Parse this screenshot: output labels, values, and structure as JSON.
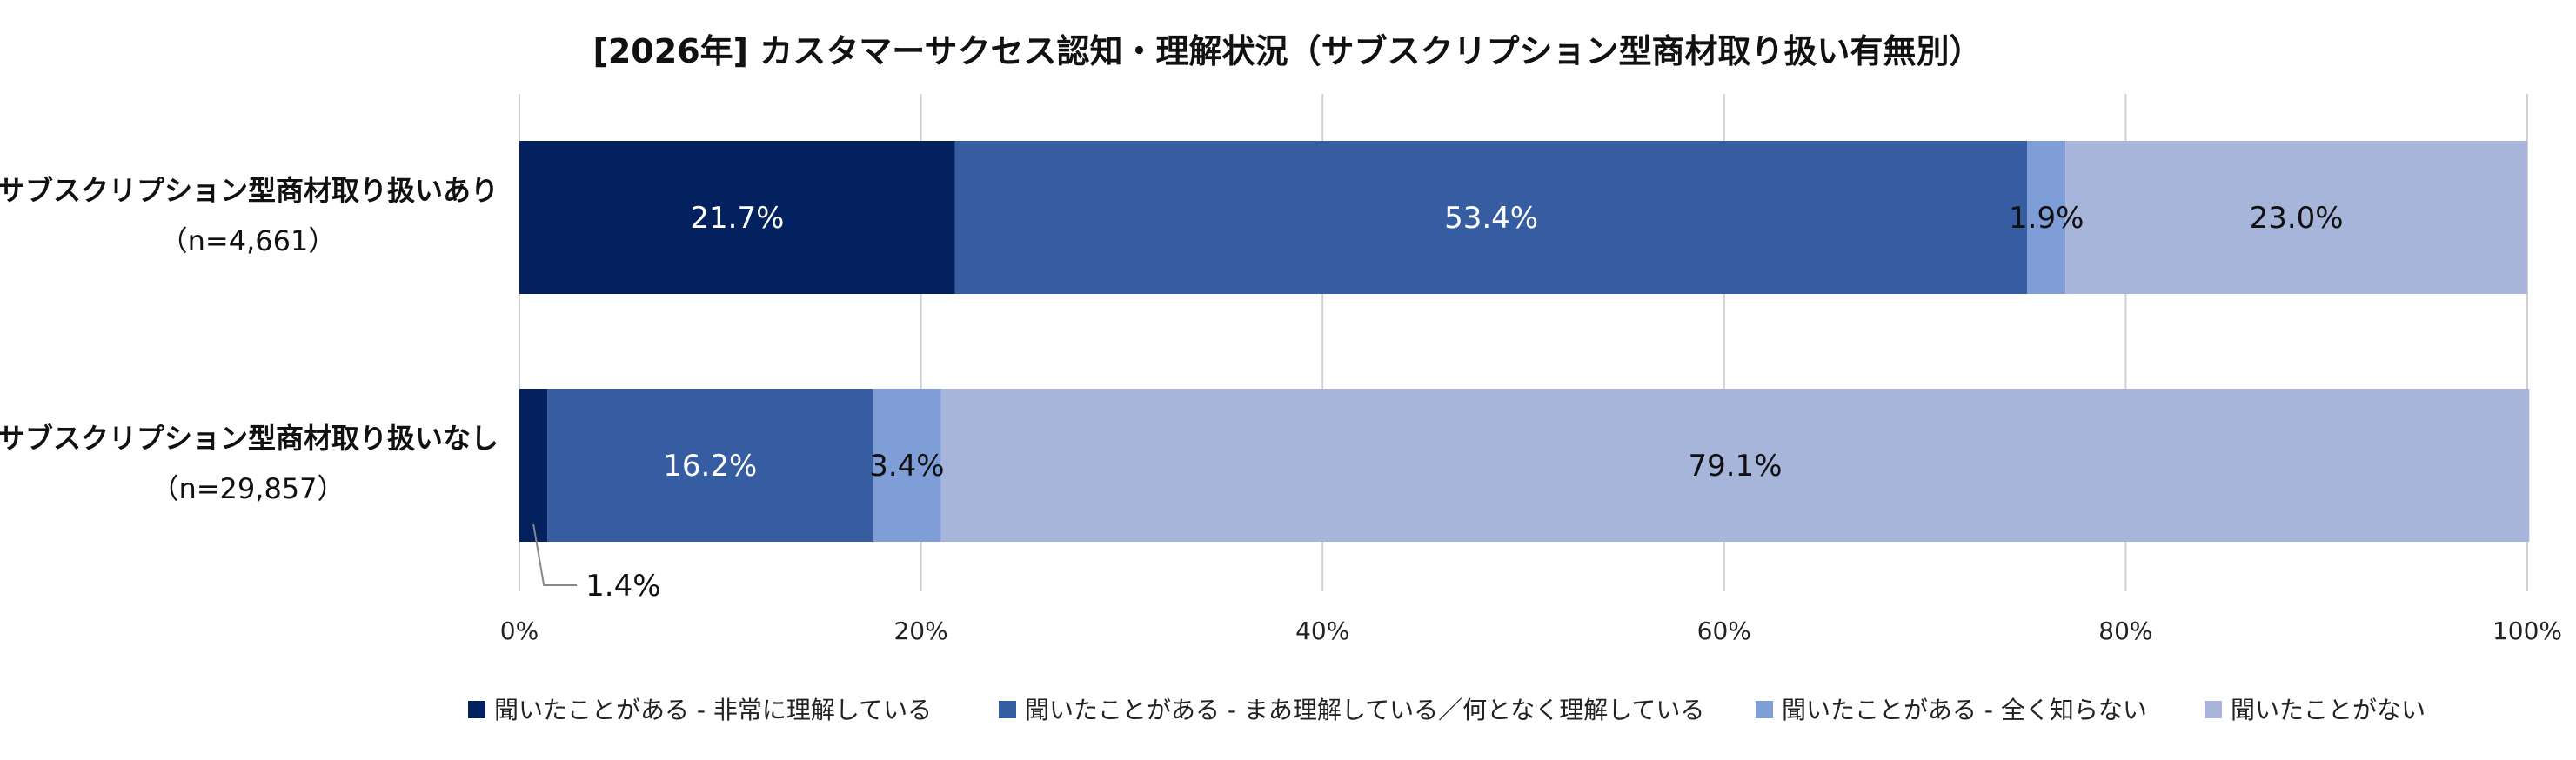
{
  "chart_data": {
    "type": "bar",
    "orientation": "horizontal",
    "stacked": true,
    "percent_stacked": true,
    "title": "[2026年] カスタマーサクセス認知・理解状況（サブスクリプション型商材取り扱い有無別）",
    "categories": [
      {
        "name": "サブスクリプション型商材取り扱いあり",
        "n": "（n=4,661）"
      },
      {
        "name": "サブスクリプション型商材取り扱いなし",
        "n": "（n=29,857）"
      }
    ],
    "series": [
      {
        "name": "聞いたことがある - 非常に理解している",
        "color": "#03215F",
        "label_color": "#ffffff",
        "values": [
          21.7,
          1.4
        ]
      },
      {
        "name": "聞いたことがある - まあ理解している／何となく理解している",
        "color": "#365DA2",
        "label_color": "#ffffff",
        "values": [
          53.4,
          16.2
        ]
      },
      {
        "name": "聞いたことがある - 全く知らない",
        "color": "#7F9ED8",
        "label_color": "#111111",
        "values": [
          1.9,
          3.4
        ]
      },
      {
        "name": "聞いたことがない",
        "color": "#A8B5DB",
        "label_color": "#111111",
        "values": [
          23.0,
          79.1
        ]
      }
    ],
    "data_labels": [
      [
        "21.7%",
        "53.4%",
        "1.9%",
        "23.0%"
      ],
      [
        "1.4%",
        "16.2%",
        "3.4%",
        "79.1%"
      ]
    ],
    "xlim": [
      0,
      100
    ],
    "x_ticks": [
      "0%",
      "20%",
      "40%",
      "60%",
      "80%",
      "100%"
    ],
    "grid": true,
    "legend": "bottom"
  }
}
